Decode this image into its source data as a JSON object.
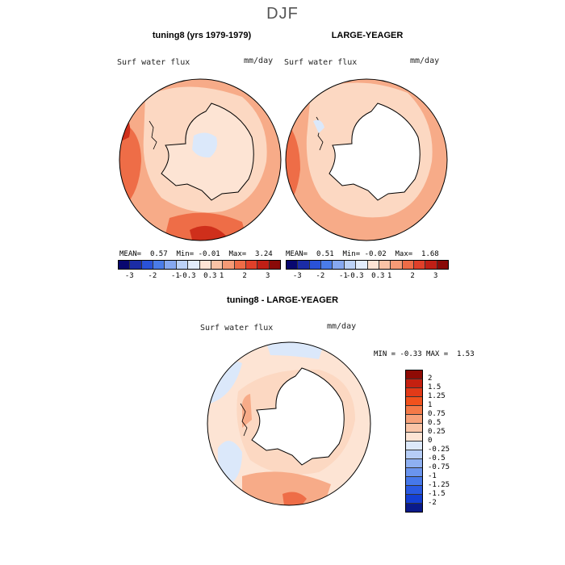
{
  "figure": {
    "title": "DJF"
  },
  "panels": [
    {
      "title": "tuning8 (yrs 1979-1979)",
      "variable": "Surf water flux",
      "units": "mm/day",
      "mean_label": "MEAN=",
      "mean": "0.57",
      "min_label": "Min=",
      "min": "-0.01",
      "max_label": "Max=",
      "max": "3.24"
    },
    {
      "title": "LARGE-YEAGER",
      "variable": "Surf water flux",
      "units": "mm/day",
      "mean_label": "MEAN=",
      "mean": "0.51",
      "min_label": "Min=",
      "min": "-0.02",
      "max_label": "Max=",
      "max": "1.68"
    }
  ],
  "diff_panel": {
    "title": "tuning8 - LARGE-YEAGER",
    "variable": "Surf water flux",
    "units": "mm/day",
    "min_label": "MIN =",
    "min": "-0.33",
    "max_label": "MAX =",
    "max": "1.53"
  },
  "colorbar_top": {
    "tick_labels": [
      "-3",
      "-2",
      "-1",
      "-0.3",
      "0.3",
      "1",
      "2",
      "3"
    ],
    "colors": [
      "#08076f",
      "#1b2ca6",
      "#2a52d8",
      "#4a7ce8",
      "#86a8f0",
      "#bcd2f7",
      "#e2ecfb",
      "#fde4d4",
      "#f9c3a6",
      "#f59a76",
      "#ee6c47",
      "#e0402a",
      "#c01f16",
      "#8a0a08"
    ]
  },
  "colorbar_diff": {
    "tick_labels": [
      "2",
      "1.5",
      "1.25",
      "1",
      "0.75",
      "0.5",
      "0.25",
      "0",
      "-0.25",
      "-0.5",
      "-0.75",
      "-1",
      "-1.25",
      "-1.5",
      "-2"
    ],
    "colors": [
      "#8f0b05",
      "#c52010",
      "#e23a18",
      "#f1521d",
      "#f47a48",
      "#f7a27a",
      "#fac5a7",
      "#fde4d4",
      "#dde9fa",
      "#b6cdf6",
      "#8eb0f2",
      "#6a94ee",
      "#4678ea",
      "#2a5ae2",
      "#143fd4",
      "#0a1a8a"
    ]
  },
  "map_colors": {
    "ocean_light": "#fcd8c2",
    "ocean_mid": "#f7ab88",
    "ocean_strong": "#ee6d47",
    "ocean_deep": "#cf2f1b",
    "land_white": "#ffffff",
    "land_pale": "#fde4d4",
    "pale_blue": "#dbe8fa"
  }
}
